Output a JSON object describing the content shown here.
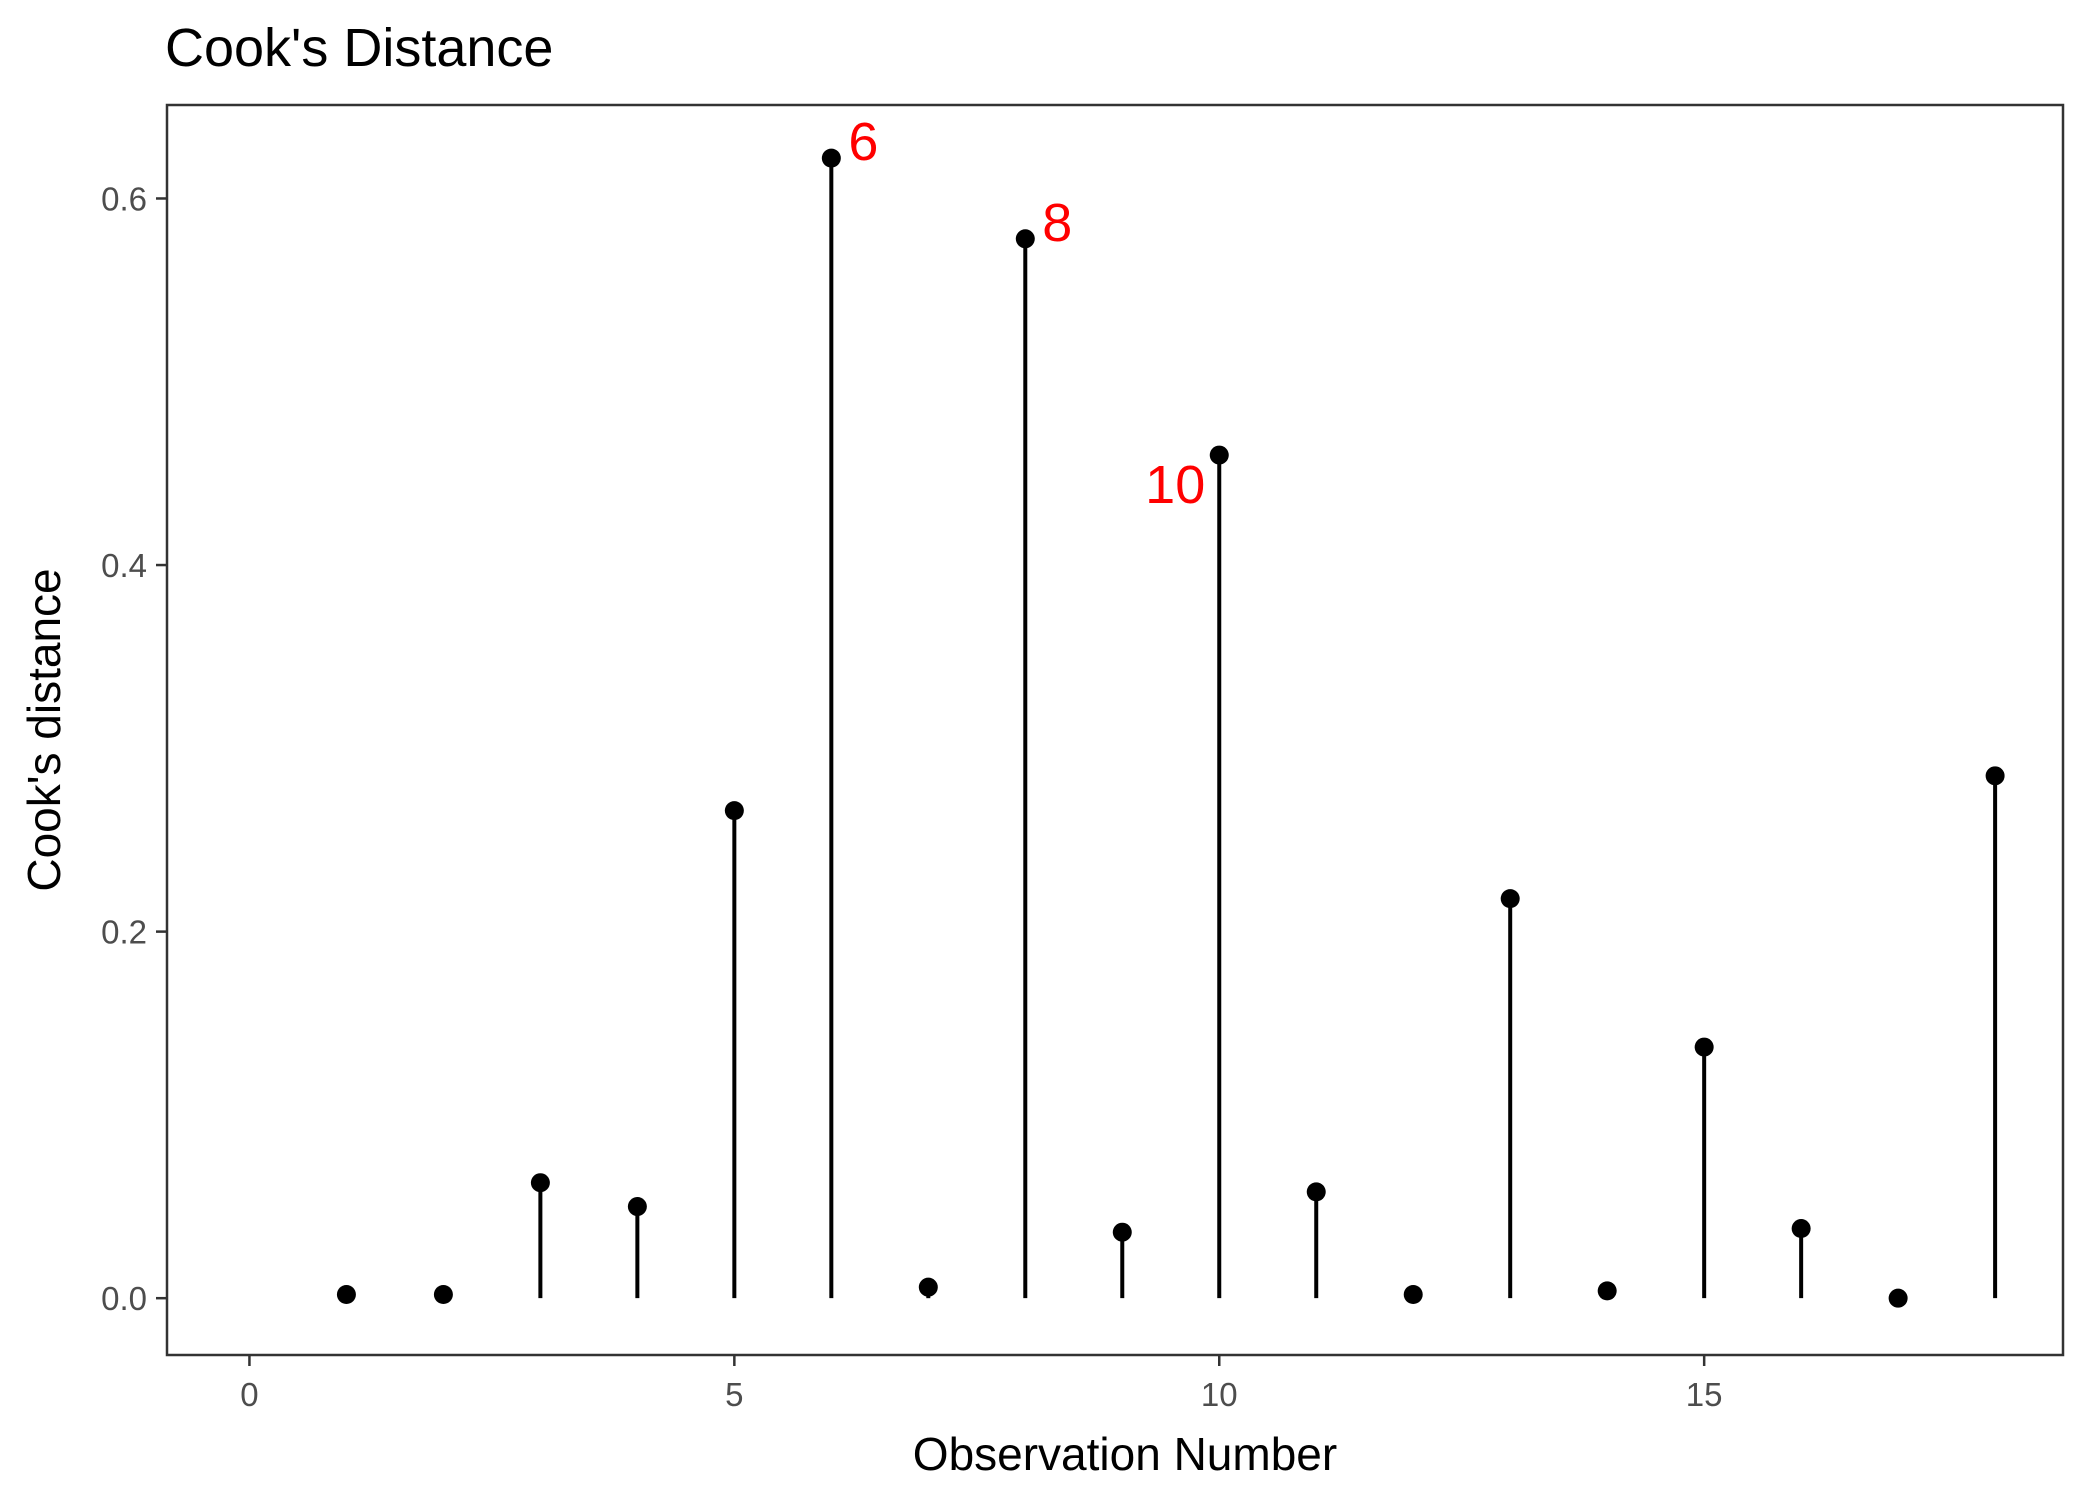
{
  "chart_data": {
    "type": "scatter",
    "title": "Cook's Distance",
    "xlabel": "Observation Number",
    "ylabel": "Cook's distance",
    "xlim": [
      -0.85,
      18.7
    ],
    "ylim": [
      -0.031,
      0.651
    ],
    "x_ticks": [
      0,
      5,
      10,
      15
    ],
    "y_ticks": [
      0.0,
      0.2,
      0.4,
      0.6
    ],
    "x_tick_labels": [
      "0",
      "5",
      "10",
      "15"
    ],
    "y_tick_labels": [
      "0.0",
      "0.2",
      "0.4",
      "0.6"
    ],
    "grid": false,
    "points": [
      {
        "x": 1,
        "y": 0.002
      },
      {
        "x": 2,
        "y": 0.002
      },
      {
        "x": 3,
        "y": 0.063
      },
      {
        "x": 4,
        "y": 0.05
      },
      {
        "x": 5,
        "y": 0.266
      },
      {
        "x": 6,
        "y": 0.622
      },
      {
        "x": 7,
        "y": 0.006
      },
      {
        "x": 8,
        "y": 0.578
      },
      {
        "x": 9,
        "y": 0.036
      },
      {
        "x": 10,
        "y": 0.46
      },
      {
        "x": 11,
        "y": 0.058
      },
      {
        "x": 12,
        "y": 0.002
      },
      {
        "x": 13,
        "y": 0.218
      },
      {
        "x": 14,
        "y": 0.004
      },
      {
        "x": 15,
        "y": 0.137
      },
      {
        "x": 16,
        "y": 0.038
      },
      {
        "x": 17,
        "y": 0.0
      },
      {
        "x": 18,
        "y": 0.285
      }
    ],
    "annotations": [
      {
        "text": "6",
        "x": 6,
        "y": 0.622,
        "color": "#ff0000",
        "side": "right"
      },
      {
        "text": "8",
        "x": 8,
        "y": 0.578,
        "color": "#ff0000",
        "side": "right"
      },
      {
        "text": "10",
        "x": 10,
        "y": 0.46,
        "color": "#ff0000",
        "side": "left"
      }
    ],
    "colors": {
      "marks": "#000000",
      "annotation": "#ff0000",
      "panel_border": "#333333",
      "tick_label": "#4d4d4d"
    }
  }
}
